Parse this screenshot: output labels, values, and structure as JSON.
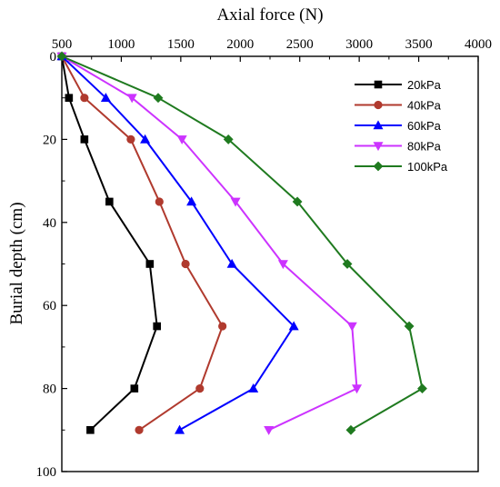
{
  "chart_data": {
    "type": "line",
    "title": "",
    "xlabel": "Axial force (N)",
    "ylabel": "Burial depth (cm)",
    "xlim": [
      500,
      4000
    ],
    "ylim": [
      0,
      100
    ],
    "x_axis_position": "top",
    "y_axis_inverted": true,
    "grid": false,
    "legend_position": "top-right",
    "x_ticks": [
      500,
      1000,
      1500,
      2000,
      2500,
      3000,
      3500,
      4000
    ],
    "y_ticks": [
      0,
      20,
      40,
      60,
      80,
      100
    ],
    "depths": [
      0,
      10,
      20,
      35,
      50,
      65,
      80,
      90
    ],
    "series": [
      {
        "name": "20kPa",
        "color": "#000000",
        "marker": "square",
        "axial_force": [
          500,
          560,
          690,
          900,
          1240,
          1300,
          1110,
          740
        ]
      },
      {
        "name": "40kPa",
        "color": "#b03a2e",
        "marker": "circle",
        "axial_force": [
          500,
          690,
          1080,
          1320,
          1540,
          1850,
          1660,
          1150
        ]
      },
      {
        "name": "60kPa",
        "color": "#0000ff",
        "marker": "triangle-up",
        "axial_force": [
          500,
          870,
          1200,
          1590,
          1930,
          2450,
          2110,
          1490
        ]
      },
      {
        "name": "80kPa",
        "color": "#cc33ff",
        "marker": "triangle-down",
        "axial_force": [
          500,
          1090,
          1510,
          1960,
          2360,
          2940,
          2980,
          2240
        ]
      },
      {
        "name": "100kPa",
        "color": "#1f7a1f",
        "marker": "diamond",
        "axial_force": [
          500,
          1310,
          1900,
          2480,
          2900,
          3420,
          3530,
          2930
        ]
      }
    ]
  }
}
